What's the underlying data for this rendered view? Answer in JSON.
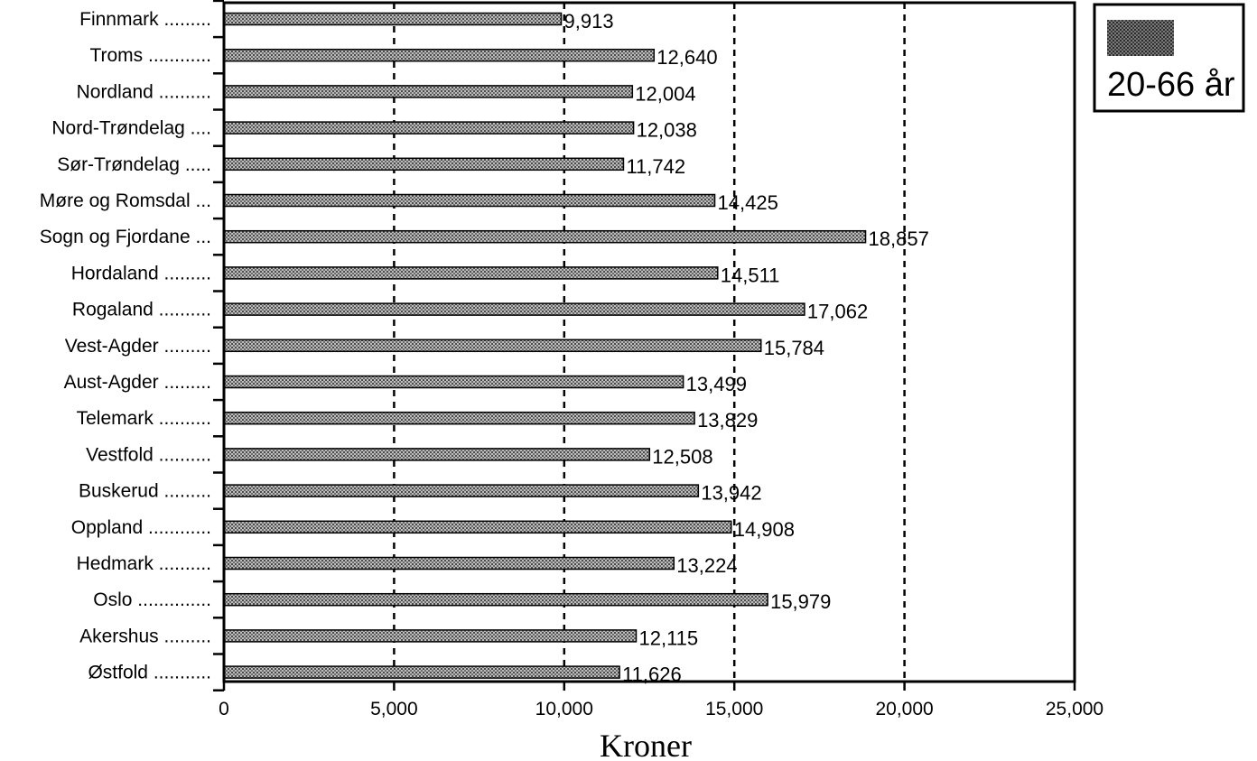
{
  "chart_data": {
    "type": "bar",
    "orientation": "horizontal",
    "categories": [
      "Finnmark .........",
      "Troms ............",
      "Nordland ..........",
      "Nord-Trøndelag ....",
      "Sør-Trøndelag .....",
      "Møre og Romsdal ...",
      "Sogn og Fjordane ...",
      "Hordaland .........",
      "Rogaland ..........",
      "Vest-Agder .........",
      "Aust-Agder .........",
      "Telemark ..........",
      "Vestfold ..........",
      "Buskerud .........",
      "Oppland ............",
      "Hedmark ..........",
      "Oslo ..............",
      "Akershus .........",
      "Østfold ..........."
    ],
    "series": [
      {
        "name": "20-66 år",
        "values": [
          9913,
          12640,
          12004,
          12038,
          11742,
          14425,
          18857,
          14511,
          17062,
          15784,
          13499,
          13829,
          12508,
          13942,
          14908,
          13224,
          15979,
          12115,
          11626
        ],
        "labels": [
          "9,913",
          "12,640",
          "12,004",
          "12,038",
          "11,742",
          "14,425",
          "18,857",
          "14,511",
          "17,062",
          "15,784",
          "13,499",
          "13,829",
          "12,508",
          "13,942",
          "14,908",
          "13,224",
          "15,979",
          "12,115",
          "11,626"
        ]
      }
    ],
    "xlabel": "Kroner",
    "xlim": [
      0,
      25000
    ],
    "xticks": [
      0,
      5000,
      10000,
      15000,
      20000,
      25000
    ],
    "xtick_labels": [
      "0",
      "5,000",
      "10,000",
      "15,000",
      "20,000",
      "25,000"
    ],
    "grid": "vertical dashed lines at 5,000 intervals",
    "legend": "top-right, outside plot",
    "bar_color": "#8c8c8c"
  }
}
